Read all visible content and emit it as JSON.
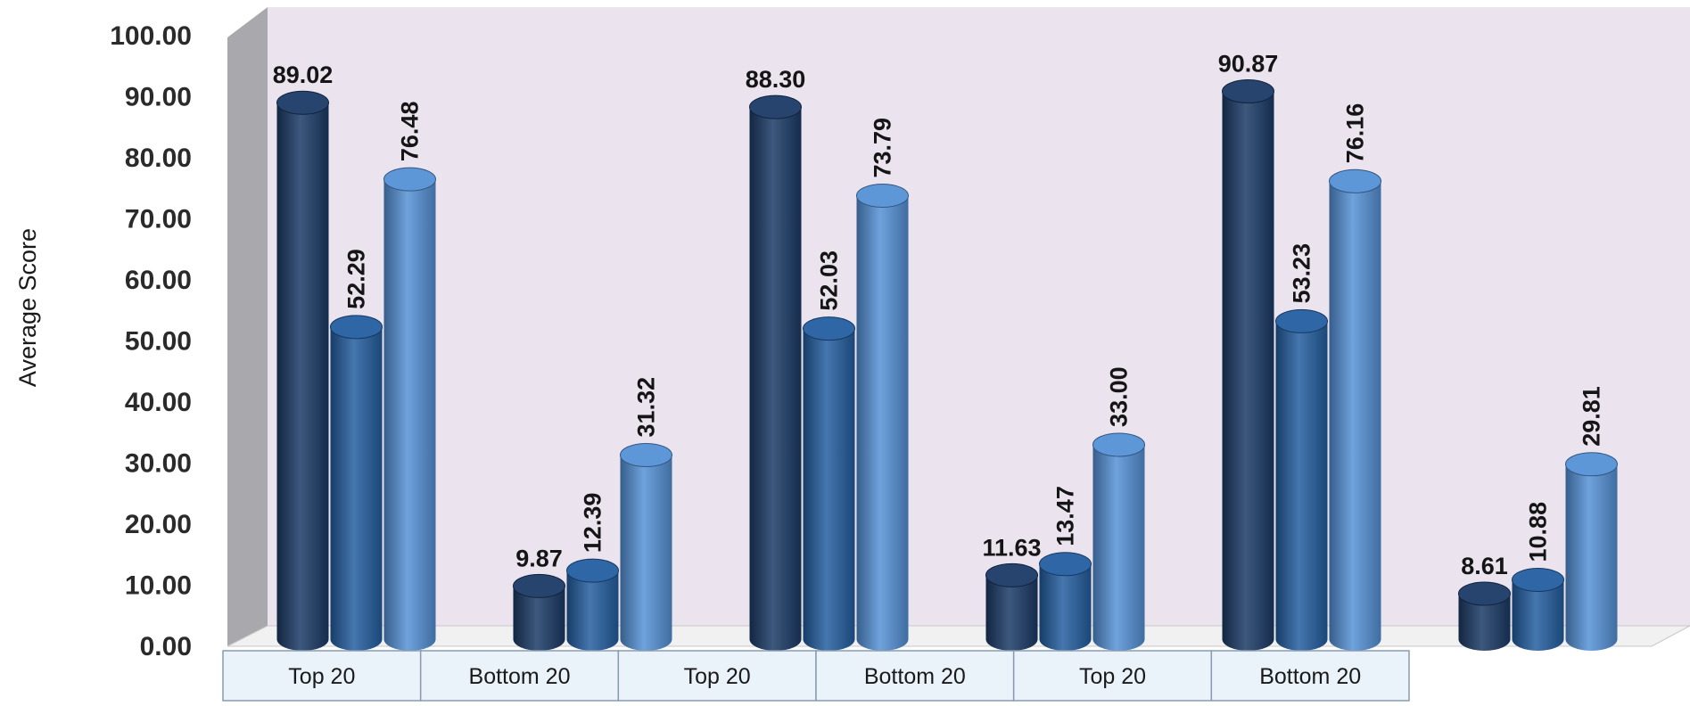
{
  "chart_data": {
    "type": "bar",
    "style": "3d-cylinder",
    "ylabel": "Average Score",
    "xlabel": "",
    "ylim": [
      0,
      100
    ],
    "ytick_step": 10,
    "ytick_format": "2-decimal",
    "categories": [
      "Top 20",
      "Bottom 20",
      "Top 20",
      "Bottom 20",
      "Top 20",
      "Bottom 20"
    ],
    "series": [
      {
        "color": "#1b3a66",
        "values": [
          89.02,
          9.87,
          88.3,
          11.63,
          90.87,
          8.61
        ]
      },
      {
        "color": "#245ea0",
        "values": [
          52.29,
          12.39,
          52.03,
          13.47,
          53.23,
          10.88
        ]
      },
      {
        "color": "#5591d6",
        "values": [
          76.48,
          31.32,
          73.79,
          33.0,
          76.16,
          29.81
        ]
      }
    ],
    "grid": false,
    "legend": "none",
    "back_wall_color": "#ebe3ee",
    "floor_color": "#f1f1f1",
    "category_table_fill": "#eaf3fa"
  }
}
